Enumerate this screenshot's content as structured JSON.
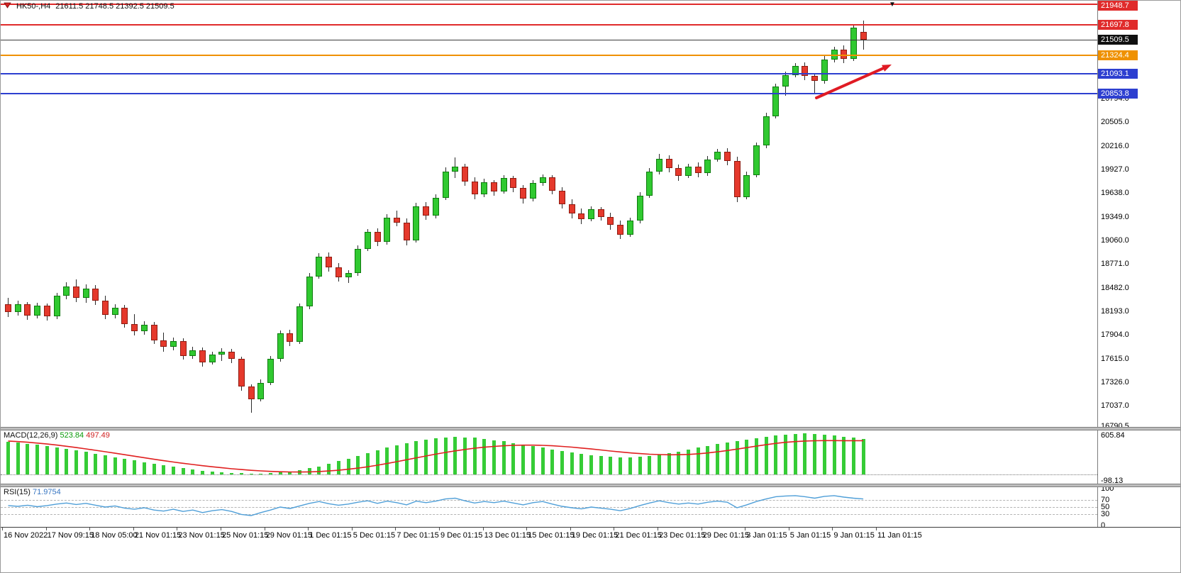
{
  "colors": {
    "up": "#30c930",
    "up_border": "#0e7a0e",
    "down": "#e5392c",
    "down_border": "#8f1a10",
    "wick": "#2b2b2b",
    "macd_bar": "#36cc36",
    "macd_signal": "#e02020",
    "rsi_line": "#4f9fd8",
    "arrow": "#e01b24",
    "badge_red": "#e02b2b",
    "badge_black": "#101010",
    "badge_orange": "#ef9100",
    "badge_blue": "#2d3fd0"
  },
  "chart_data": [
    {
      "type": "candlestick",
      "title": "HK50-,H4",
      "ohlc_text": "21611.5 21748.5 21392.5 21509.5",
      "ylim": [
        16780,
        21990
      ],
      "levels": [
        {
          "label": "21948.7",
          "color": "#e02b2b",
          "badge": "#e02b2b",
          "width": 2
        },
        {
          "label": "21697.8",
          "color": "#e02b2b",
          "badge": "#e02b2b",
          "width": 2
        },
        {
          "label": "21509.5",
          "color": "#3a3a3a",
          "badge": "#101010",
          "width": 1
        },
        {
          "label": "21324.4",
          "color": "#ef9100",
          "badge": "#ef9100",
          "width": 2
        },
        {
          "label": "21093.1",
          "color": "#2d3fd0",
          "badge": "#2d3fd0",
          "width": 2
        },
        {
          "label": "20853.8",
          "color": "#2d3fd0",
          "badge": "#2d3fd0",
          "width": 2
        }
      ],
      "y_axis_labels": [
        "21661.0",
        "20794.0",
        "20505.0",
        "20216.0",
        "19927.0",
        "19638.0",
        "19349.0",
        "19060.0",
        "18771.0",
        "18482.0",
        "18193.0",
        "17904.0",
        "17615.0",
        "17326.0",
        "17037.0",
        "16790.5"
      ],
      "x_axis_labels": [
        "16 Nov 2022",
        "17 Nov 09:15",
        "18 Nov 05:00",
        "21 Nov 01:15",
        "23 Nov 01:15",
        "25 Nov 01:15",
        "29 Nov 01:15",
        "1 Dec 01:15",
        "5 Dec 01:15",
        "7 Dec 01:15",
        "9 Dec 01:15",
        "13 Dec 01:15",
        "15 Dec 01:15",
        "19 Dec 01:15",
        "21 Dec 01:15",
        "23 Dec 01:15",
        "29 Dec 01:15",
        "3 Jan 01:15",
        "5 Jan 01:15",
        "9 Jan 01:15",
        "11 Jan 01:15"
      ],
      "candles": [
        [
          18280,
          18360,
          18120,
          18180
        ],
        [
          18180,
          18320,
          18140,
          18280
        ],
        [
          18280,
          18310,
          18090,
          18140
        ],
        [
          18140,
          18300,
          18110,
          18260
        ],
        [
          18260,
          18290,
          18080,
          18130
        ],
        [
          18130,
          18420,
          18100,
          18380
        ],
        [
          18380,
          18550,
          18340,
          18500
        ],
        [
          18500,
          18580,
          18310,
          18360
        ],
        [
          18360,
          18520,
          18300,
          18470
        ],
        [
          18470,
          18510,
          18270,
          18320
        ],
        [
          18320,
          18380,
          18100,
          18150
        ],
        [
          18150,
          18280,
          18110,
          18240
        ],
        [
          18240,
          18270,
          17990,
          18040
        ],
        [
          18040,
          18160,
          17900,
          17950
        ],
        [
          17950,
          18070,
          17910,
          18030
        ],
        [
          18030,
          18060,
          17790,
          17840
        ],
        [
          17840,
          17930,
          17700,
          17760
        ],
        [
          17760,
          17870,
          17720,
          17830
        ],
        [
          17830,
          17860,
          17600,
          17650
        ],
        [
          17650,
          17760,
          17610,
          17720
        ],
        [
          17720,
          17750,
          17520,
          17570
        ],
        [
          17570,
          17700,
          17540,
          17660
        ],
        [
          17660,
          17740,
          17590,
          17700
        ],
        [
          17700,
          17730,
          17560,
          17610
        ],
        [
          17610,
          17640,
          17220,
          17270
        ],
        [
          17270,
          17300,
          16950,
          17120
        ],
        [
          17120,
          17360,
          17090,
          17320
        ],
        [
          17320,
          17650,
          17290,
          17610
        ],
        [
          17610,
          17960,
          17580,
          17920
        ],
        [
          17920,
          17970,
          17770,
          17820
        ],
        [
          17820,
          18290,
          17790,
          18250
        ],
        [
          18250,
          18660,
          18220,
          18620
        ],
        [
          18620,
          18900,
          18590,
          18860
        ],
        [
          18860,
          18910,
          18680,
          18730
        ],
        [
          18730,
          18780,
          18560,
          18610
        ],
        [
          18610,
          18700,
          18540,
          18660
        ],
        [
          18660,
          19000,
          18630,
          18960
        ],
        [
          18960,
          19200,
          18930,
          19160
        ],
        [
          19160,
          19210,
          18990,
          19040
        ],
        [
          19040,
          19380,
          19010,
          19340
        ],
        [
          19340,
          19420,
          19230,
          19280
        ],
        [
          19280,
          19330,
          19000,
          19060
        ],
        [
          19060,
          19520,
          19030,
          19480
        ],
        [
          19480,
          19530,
          19310,
          19360
        ],
        [
          19360,
          19620,
          19330,
          19580
        ],
        [
          19580,
          19950,
          19550,
          19900
        ],
        [
          19900,
          20070,
          19820,
          19960
        ],
        [
          19960,
          20000,
          19730,
          19780
        ],
        [
          19780,
          19830,
          19560,
          19620
        ],
        [
          19620,
          19810,
          19590,
          19770
        ],
        [
          19770,
          19800,
          19610,
          19660
        ],
        [
          19660,
          19860,
          19630,
          19820
        ],
        [
          19820,
          19850,
          19650,
          19700
        ],
        [
          19700,
          19740,
          19510,
          19570
        ],
        [
          19570,
          19800,
          19540,
          19760
        ],
        [
          19760,
          19870,
          19730,
          19830
        ],
        [
          19830,
          19860,
          19620,
          19670
        ],
        [
          19670,
          19710,
          19450,
          19500
        ],
        [
          19500,
          19560,
          19330,
          19390
        ],
        [
          19390,
          19450,
          19260,
          19320
        ],
        [
          19320,
          19480,
          19290,
          19440
        ],
        [
          19440,
          19470,
          19300,
          19350
        ],
        [
          19350,
          19400,
          19190,
          19250
        ],
        [
          19250,
          19300,
          19080,
          19130
        ],
        [
          19130,
          19340,
          19100,
          19300
        ],
        [
          19300,
          19650,
          19270,
          19610
        ],
        [
          19610,
          19940,
          19580,
          19900
        ],
        [
          19900,
          20120,
          19870,
          20060
        ],
        [
          20060,
          20100,
          19890,
          19940
        ],
        [
          19940,
          19990,
          19790,
          19850
        ],
        [
          19850,
          20000,
          19820,
          19960
        ],
        [
          19960,
          20010,
          19830,
          19880
        ],
        [
          19880,
          20090,
          19850,
          20050
        ],
        [
          20050,
          20180,
          20020,
          20140
        ],
        [
          20140,
          20190,
          19980,
          20030
        ],
        [
          20030,
          20080,
          19530,
          19590
        ],
        [
          19590,
          19900,
          19560,
          19860
        ],
        [
          19860,
          20260,
          19830,
          20220
        ],
        [
          20220,
          20620,
          20190,
          20580
        ],
        [
          20580,
          20980,
          20550,
          20940
        ],
        [
          20940,
          21120,
          20830,
          21080
        ],
        [
          21080,
          21230,
          21050,
          21190
        ],
        [
          21190,
          21240,
          21020,
          21070
        ],
        [
          21070,
          21110,
          20860,
          21010
        ],
        [
          21010,
          21310,
          20980,
          21270
        ],
        [
          21270,
          21430,
          21240,
          21390
        ],
        [
          21390,
          21440,
          21230,
          21280
        ],
        [
          21280,
          21700,
          21250,
          21660
        ],
        [
          21611.5,
          21748.5,
          21392.5,
          21509.5
        ]
      ],
      "annotations": {
        "trend_arrow": {
          "from": [
            1150,
            137
          ],
          "to": [
            1256,
            90
          ]
        },
        "triangle_marker": {
          "x": 1252,
          "y": 1,
          "glyph": "▼"
        }
      }
    },
    {
      "type": "bar",
      "name": "MACD",
      "label": "MACD(12,26,9)",
      "value_text": "523.84",
      "signal_text": "497.49",
      "ylim": [
        -98.13,
        605.84
      ],
      "scale_labels": [
        "605.84",
        "-98.13"
      ],
      "values": [
        480,
        465,
        450,
        435,
        420,
        400,
        378,
        355,
        330,
        305,
        280,
        255,
        230,
        205,
        180,
        155,
        132,
        110,
        90,
        72,
        56,
        42,
        30,
        22,
        16,
        12,
        14,
        20,
        30,
        45,
        65,
        90,
        120,
        155,
        195,
        235,
        275,
        315,
        355,
        395,
        430,
        462,
        490,
        515,
        535,
        548,
        552,
        548,
        538,
        524,
        506,
        486,
        464,
        440,
        416,
        392,
        368,
        345,
        322,
        300,
        282,
        268,
        258,
        252,
        252,
        258,
        270,
        288,
        310,
        336,
        364,
        392,
        420,
        446,
        470,
        492,
        512,
        532,
        552,
        570,
        586,
        598,
        605.84,
        600,
        588,
        572,
        555,
        540,
        523.84
      ],
      "signal": [
        492,
        484,
        474,
        462,
        448,
        432,
        415,
        396,
        376,
        355,
        334,
        312,
        290,
        268,
        246,
        224,
        203,
        183,
        164,
        146,
        129,
        113,
        98,
        84,
        72,
        61,
        52,
        45,
        40,
        37,
        36,
        38,
        43,
        51,
        62,
        76,
        93,
        113,
        136,
        161,
        188,
        216,
        244,
        272,
        299,
        324,
        347,
        368,
        386,
        401,
        413,
        422,
        428,
        431,
        431,
        428,
        422,
        413,
        402,
        389,
        375,
        360,
        345,
        331,
        318,
        307,
        298,
        292,
        289,
        290,
        295,
        304,
        317,
        333,
        352,
        373,
        395,
        417,
        438,
        457,
        473,
        484,
        492,
        496,
        498,
        498,
        497,
        497,
        497.49
      ]
    },
    {
      "type": "line",
      "name": "RSI",
      "label": "RSI(15)",
      "value_text": "71.9754",
      "ylim": [
        0,
        100
      ],
      "levels": [
        70,
        50,
        30
      ],
      "scale_labels": [
        "100",
        "70",
        "50",
        "30",
        "0"
      ],
      "values": [
        54,
        52,
        55,
        51,
        54,
        58,
        61,
        57,
        60,
        55,
        50,
        53,
        47,
        44,
        48,
        42,
        39,
        44,
        38,
        42,
        35,
        40,
        43,
        38,
        30,
        27,
        35,
        42,
        50,
        46,
        53,
        60,
        65,
        59,
        55,
        58,
        63,
        67,
        60,
        66,
        62,
        56,
        66,
        62,
        66,
        72,
        74,
        67,
        61,
        65,
        62,
        66,
        61,
        56,
        62,
        65,
        58,
        52,
        48,
        45,
        50,
        47,
        44,
        40,
        46,
        54,
        61,
        67,
        62,
        58,
        61,
        58,
        63,
        66,
        63,
        48,
        56,
        65,
        72,
        78,
        80,
        81,
        78,
        74,
        79,
        81,
        77,
        74,
        71.9754
      ]
    }
  ]
}
